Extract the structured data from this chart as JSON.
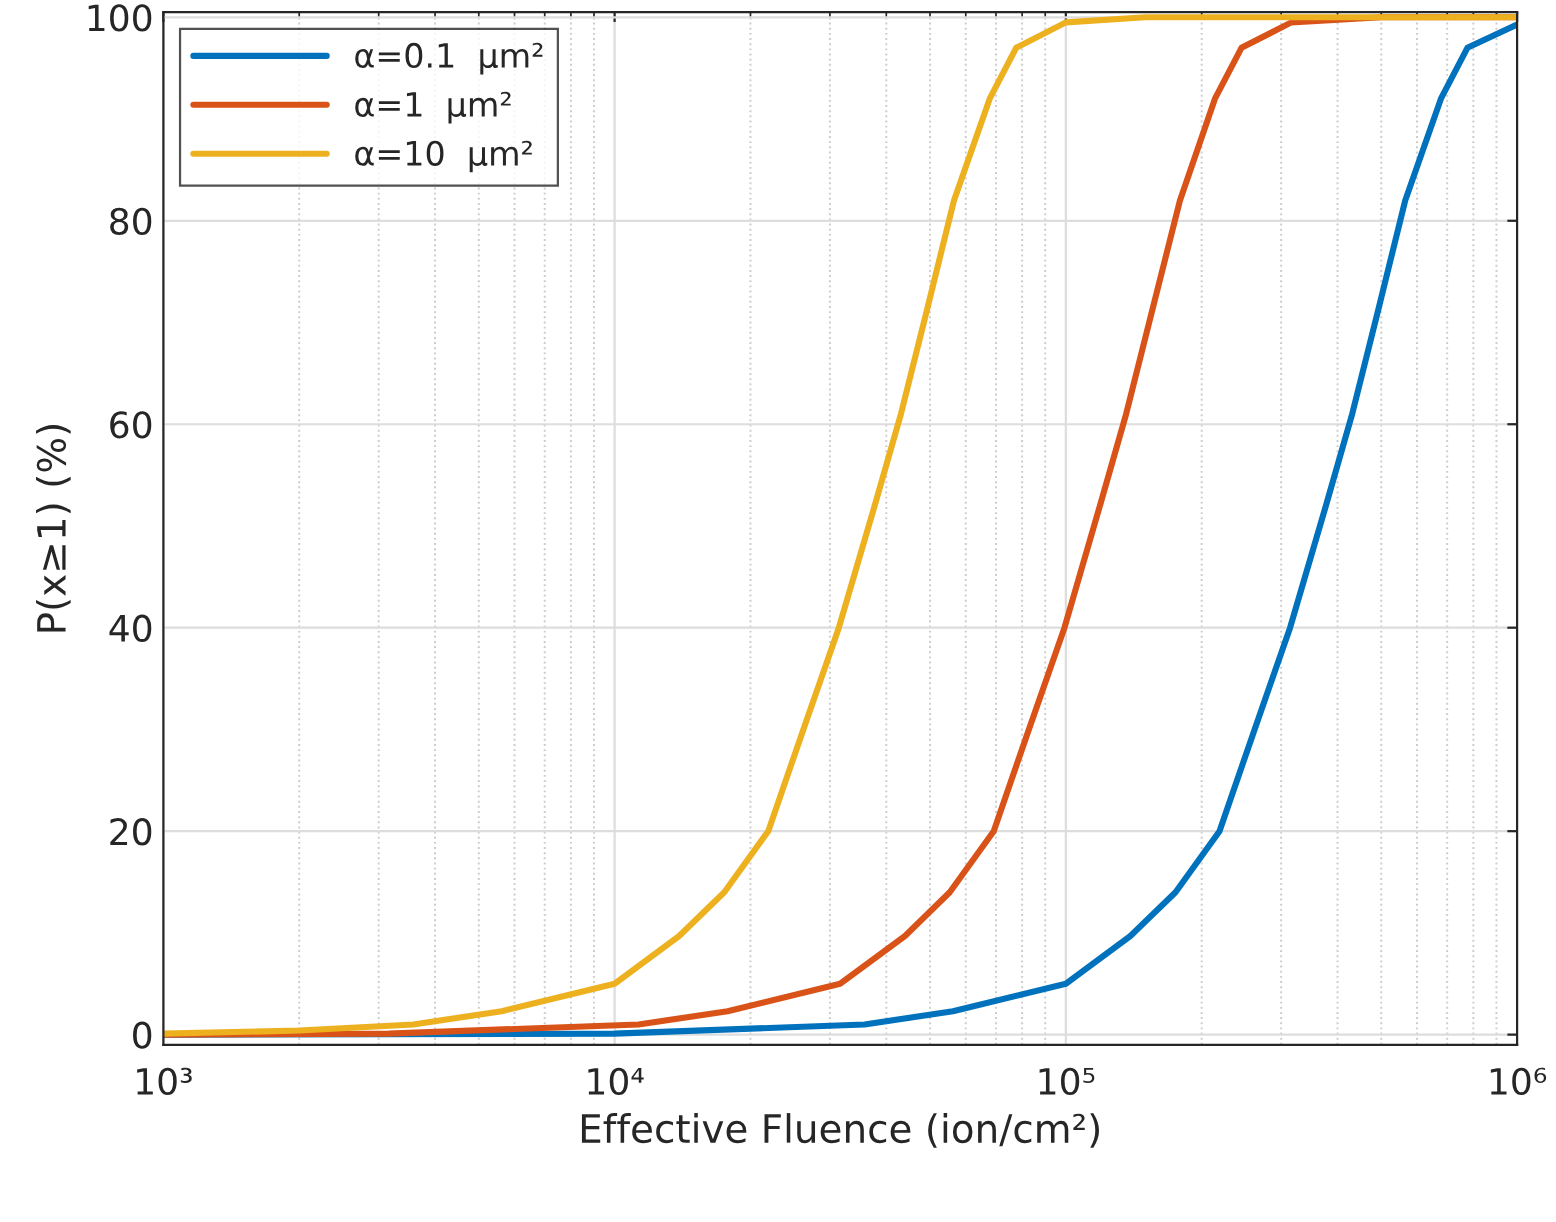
{
  "chart_data": {
    "type": "line",
    "xlabel": "Effective Fluence (ion/cm²)",
    "ylabel": "P(x≥1) (%)",
    "log": "x",
    "xlim": [
      1000,
      1000000
    ],
    "ylim": [
      -1,
      100.5
    ],
    "xticks": [
      {
        "value": 1000,
        "label": "10³"
      },
      {
        "value": 10000,
        "label": "10⁴"
      },
      {
        "value": 100000,
        "label": "10⁵"
      },
      {
        "value": 1000000,
        "label": "10⁶"
      }
    ],
    "yticks": [
      0,
      20,
      40,
      60,
      80,
      100
    ],
    "grid": true,
    "legend": "top left",
    "line_style": "solid",
    "marker": "none",
    "series": [
      {
        "name": "α=0.1  μm²",
        "color": "#0072bd",
        "x": [
          1000,
          10000,
          35800,
          56200,
          100000,
          139000,
          175000,
          219000,
          262000,
          314000,
          377000,
          431000,
          494000,
          565000,
          678000,
          776000,
          1000000
        ],
        "values": [
          0,
          0.1,
          1.0,
          2.3,
          5,
          9.7,
          14,
          20,
          30,
          40,
          52,
          61,
          71.5,
          82,
          92,
          97,
          99.3
        ]
      },
      {
        "name": "α=1  μm²",
        "color": "#d95319",
        "x": [
          1000,
          3160,
          11300,
          17800,
          31600,
          44000,
          55300,
          69200,
          82800,
          99300,
          119000,
          136000,
          156000,
          179000,
          214000,
          245000,
          316000,
          500000,
          1000000
        ],
        "values": [
          0,
          0.1,
          1.0,
          2.3,
          5,
          9.7,
          14,
          20,
          30,
          40,
          52,
          61,
          71.5,
          82,
          92,
          97,
          99.5,
          100,
          100
        ]
      },
      {
        "name": "α=10  μm²",
        "color": "#edb120",
        "x": [
          1000,
          2000,
          3580,
          5620,
          10000,
          13900,
          17500,
          21900,
          26200,
          31400,
          37700,
          43100,
          49400,
          56500,
          67800,
          77600,
          100000,
          150000,
          1000000
        ],
        "values": [
          0.1,
          0.4,
          1.0,
          2.3,
          5,
          9.7,
          14,
          20,
          30,
          40,
          52,
          61,
          71.5,
          82,
          92,
          97,
          99.5,
          100,
          100
        ]
      }
    ]
  }
}
